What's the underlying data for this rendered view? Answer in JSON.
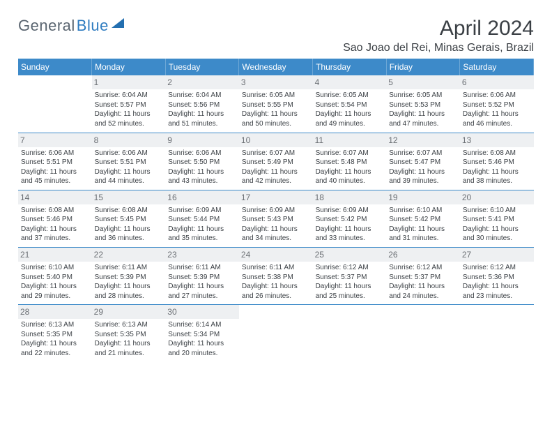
{
  "logo": {
    "part1": "General",
    "part2": "Blue"
  },
  "title": "April 2024",
  "location": "Sao Joao del Rei, Minas Gerais, Brazil",
  "header_bg": "#3d8ac9",
  "days": [
    "Sunday",
    "Monday",
    "Tuesday",
    "Wednesday",
    "Thursday",
    "Friday",
    "Saturday"
  ],
  "weeks": [
    [
      {
        "n": "",
        "sr": "",
        "ss": "",
        "dl1": "",
        "dl2": ""
      },
      {
        "n": "1",
        "sr": "Sunrise: 6:04 AM",
        "ss": "Sunset: 5:57 PM",
        "dl1": "Daylight: 11 hours",
        "dl2": "and 52 minutes."
      },
      {
        "n": "2",
        "sr": "Sunrise: 6:04 AM",
        "ss": "Sunset: 5:56 PM",
        "dl1": "Daylight: 11 hours",
        "dl2": "and 51 minutes."
      },
      {
        "n": "3",
        "sr": "Sunrise: 6:05 AM",
        "ss": "Sunset: 5:55 PM",
        "dl1": "Daylight: 11 hours",
        "dl2": "and 50 minutes."
      },
      {
        "n": "4",
        "sr": "Sunrise: 6:05 AM",
        "ss": "Sunset: 5:54 PM",
        "dl1": "Daylight: 11 hours",
        "dl2": "and 49 minutes."
      },
      {
        "n": "5",
        "sr": "Sunrise: 6:05 AM",
        "ss": "Sunset: 5:53 PM",
        "dl1": "Daylight: 11 hours",
        "dl2": "and 47 minutes."
      },
      {
        "n": "6",
        "sr": "Sunrise: 6:06 AM",
        "ss": "Sunset: 5:52 PM",
        "dl1": "Daylight: 11 hours",
        "dl2": "and 46 minutes."
      }
    ],
    [
      {
        "n": "7",
        "sr": "Sunrise: 6:06 AM",
        "ss": "Sunset: 5:51 PM",
        "dl1": "Daylight: 11 hours",
        "dl2": "and 45 minutes."
      },
      {
        "n": "8",
        "sr": "Sunrise: 6:06 AM",
        "ss": "Sunset: 5:51 PM",
        "dl1": "Daylight: 11 hours",
        "dl2": "and 44 minutes."
      },
      {
        "n": "9",
        "sr": "Sunrise: 6:06 AM",
        "ss": "Sunset: 5:50 PM",
        "dl1": "Daylight: 11 hours",
        "dl2": "and 43 minutes."
      },
      {
        "n": "10",
        "sr": "Sunrise: 6:07 AM",
        "ss": "Sunset: 5:49 PM",
        "dl1": "Daylight: 11 hours",
        "dl2": "and 42 minutes."
      },
      {
        "n": "11",
        "sr": "Sunrise: 6:07 AM",
        "ss": "Sunset: 5:48 PM",
        "dl1": "Daylight: 11 hours",
        "dl2": "and 40 minutes."
      },
      {
        "n": "12",
        "sr": "Sunrise: 6:07 AM",
        "ss": "Sunset: 5:47 PM",
        "dl1": "Daylight: 11 hours",
        "dl2": "and 39 minutes."
      },
      {
        "n": "13",
        "sr": "Sunrise: 6:08 AM",
        "ss": "Sunset: 5:46 PM",
        "dl1": "Daylight: 11 hours",
        "dl2": "and 38 minutes."
      }
    ],
    [
      {
        "n": "14",
        "sr": "Sunrise: 6:08 AM",
        "ss": "Sunset: 5:46 PM",
        "dl1": "Daylight: 11 hours",
        "dl2": "and 37 minutes."
      },
      {
        "n": "15",
        "sr": "Sunrise: 6:08 AM",
        "ss": "Sunset: 5:45 PM",
        "dl1": "Daylight: 11 hours",
        "dl2": "and 36 minutes."
      },
      {
        "n": "16",
        "sr": "Sunrise: 6:09 AM",
        "ss": "Sunset: 5:44 PM",
        "dl1": "Daylight: 11 hours",
        "dl2": "and 35 minutes."
      },
      {
        "n": "17",
        "sr": "Sunrise: 6:09 AM",
        "ss": "Sunset: 5:43 PM",
        "dl1": "Daylight: 11 hours",
        "dl2": "and 34 minutes."
      },
      {
        "n": "18",
        "sr": "Sunrise: 6:09 AM",
        "ss": "Sunset: 5:42 PM",
        "dl1": "Daylight: 11 hours",
        "dl2": "and 33 minutes."
      },
      {
        "n": "19",
        "sr": "Sunrise: 6:10 AM",
        "ss": "Sunset: 5:42 PM",
        "dl1": "Daylight: 11 hours",
        "dl2": "and 31 minutes."
      },
      {
        "n": "20",
        "sr": "Sunrise: 6:10 AM",
        "ss": "Sunset: 5:41 PM",
        "dl1": "Daylight: 11 hours",
        "dl2": "and 30 minutes."
      }
    ],
    [
      {
        "n": "21",
        "sr": "Sunrise: 6:10 AM",
        "ss": "Sunset: 5:40 PM",
        "dl1": "Daylight: 11 hours",
        "dl2": "and 29 minutes."
      },
      {
        "n": "22",
        "sr": "Sunrise: 6:11 AM",
        "ss": "Sunset: 5:39 PM",
        "dl1": "Daylight: 11 hours",
        "dl2": "and 28 minutes."
      },
      {
        "n": "23",
        "sr": "Sunrise: 6:11 AM",
        "ss": "Sunset: 5:39 PM",
        "dl1": "Daylight: 11 hours",
        "dl2": "and 27 minutes."
      },
      {
        "n": "24",
        "sr": "Sunrise: 6:11 AM",
        "ss": "Sunset: 5:38 PM",
        "dl1": "Daylight: 11 hours",
        "dl2": "and 26 minutes."
      },
      {
        "n": "25",
        "sr": "Sunrise: 6:12 AM",
        "ss": "Sunset: 5:37 PM",
        "dl1": "Daylight: 11 hours",
        "dl2": "and 25 minutes."
      },
      {
        "n": "26",
        "sr": "Sunrise: 6:12 AM",
        "ss": "Sunset: 5:37 PM",
        "dl1": "Daylight: 11 hours",
        "dl2": "and 24 minutes."
      },
      {
        "n": "27",
        "sr": "Sunrise: 6:12 AM",
        "ss": "Sunset: 5:36 PM",
        "dl1": "Daylight: 11 hours",
        "dl2": "and 23 minutes."
      }
    ],
    [
      {
        "n": "28",
        "sr": "Sunrise: 6:13 AM",
        "ss": "Sunset: 5:35 PM",
        "dl1": "Daylight: 11 hours",
        "dl2": "and 22 minutes."
      },
      {
        "n": "29",
        "sr": "Sunrise: 6:13 AM",
        "ss": "Sunset: 5:35 PM",
        "dl1": "Daylight: 11 hours",
        "dl2": "and 21 minutes."
      },
      {
        "n": "30",
        "sr": "Sunrise: 6:14 AM",
        "ss": "Sunset: 5:34 PM",
        "dl1": "Daylight: 11 hours",
        "dl2": "and 20 minutes."
      },
      {
        "n": "",
        "sr": "",
        "ss": "",
        "dl1": "",
        "dl2": ""
      },
      {
        "n": "",
        "sr": "",
        "ss": "",
        "dl1": "",
        "dl2": ""
      },
      {
        "n": "",
        "sr": "",
        "ss": "",
        "dl1": "",
        "dl2": ""
      },
      {
        "n": "",
        "sr": "",
        "ss": "",
        "dl1": "",
        "dl2": ""
      }
    ]
  ]
}
